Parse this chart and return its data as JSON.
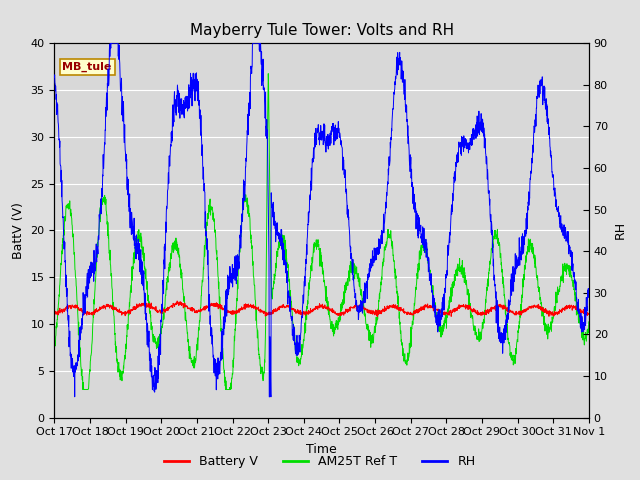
{
  "title": "Mayberry Tule Tower: Volts and RH",
  "xlabel": "Time",
  "ylabel_left": "BattV (V)",
  "ylabel_right": "RH",
  "station_label": "MB_tule",
  "xlim_days": 15,
  "ylim_left": [
    0,
    40
  ],
  "ylim_right": [
    0,
    90
  ],
  "yticks_left": [
    0,
    5,
    10,
    15,
    20,
    25,
    30,
    35,
    40
  ],
  "yticks_right": [
    0,
    10,
    20,
    30,
    40,
    50,
    60,
    70,
    80,
    90
  ],
  "xtick_labels": [
    "Oct 17",
    "Oct 18",
    "Oct 19",
    "Oct 20",
    "Oct 21",
    "Oct 22",
    "Oct 23",
    "Oct 24",
    "Oct 25",
    "Oct 26",
    "Oct 27",
    "Oct 28",
    "Oct 29",
    "Oct 30",
    "Oct 31",
    "Nov 1"
  ],
  "fig_bg_color": "#e0e0e0",
  "plot_bg_color": "#d8d8d8",
  "battery_color": "#ff0000",
  "am25t_color": "#00dd00",
  "rh_color": "#0000ff",
  "legend_labels": [
    "Battery V",
    "AM25T Ref T",
    "RH"
  ],
  "title_fontsize": 11,
  "axis_fontsize": 9,
  "tick_fontsize": 8
}
